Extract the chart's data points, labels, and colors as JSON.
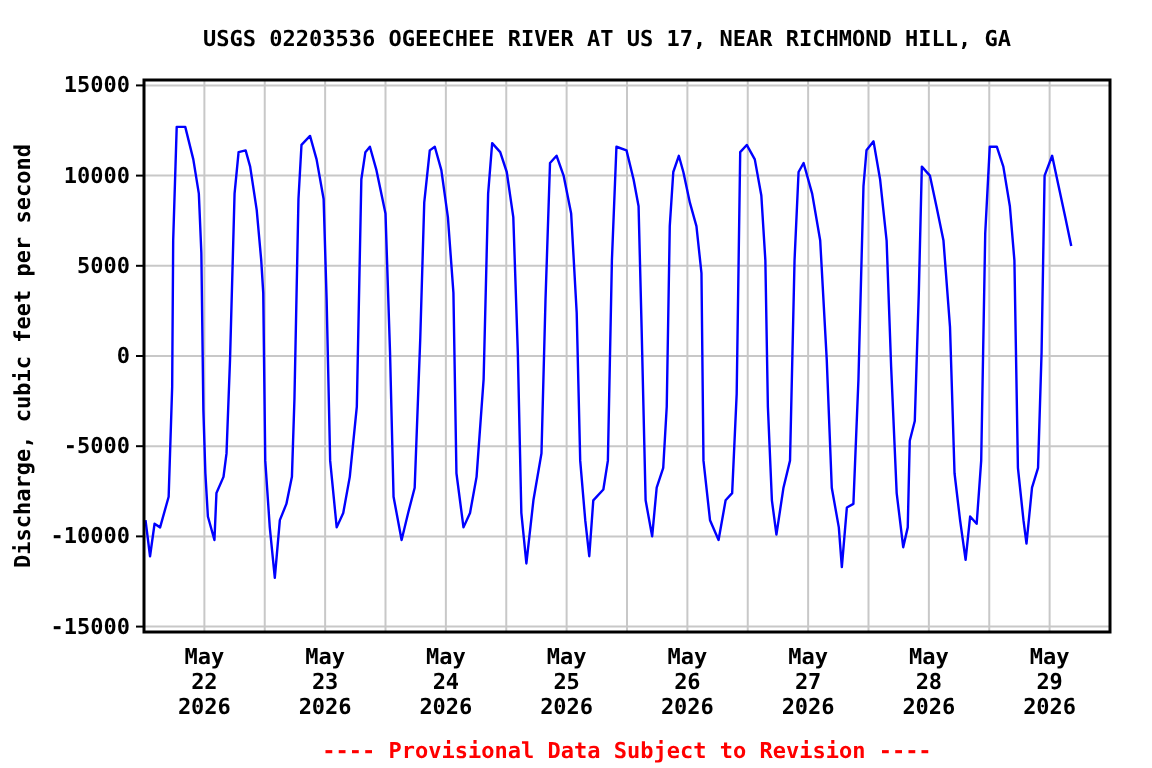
{
  "chart_data": {
    "type": "line",
    "title": "USGS 02203536 OGEECHEE RIVER AT US 17, NEAR RICHMOND HILL, GA",
    "ylabel": "Discharge, cubic feet per second",
    "annotations": [
      "---- Provisional Data Subject to Revision ----"
    ],
    "xlim": [
      "2026-05-22",
      "2026-05-30"
    ],
    "ylim": [
      -15300,
      15300
    ],
    "xticks": [
      {
        "value": "2026-05-22T12:00",
        "label": "May\n22\n2026"
      },
      {
        "value": "2026-05-23",
        "label": null
      },
      {
        "value": "2026-05-23T12:00",
        "label": "May\n23\n2026"
      },
      {
        "value": "2026-05-24",
        "label": null
      },
      {
        "value": "2026-05-24T12:00",
        "label": "May\n24\n2026"
      },
      {
        "value": "2026-05-25",
        "label": null
      },
      {
        "value": "2026-05-25T12:00",
        "label": "May\n25\n2026"
      },
      {
        "value": "2026-05-26",
        "label": null
      },
      {
        "value": "2026-05-26T12:00",
        "label": "May\n26\n2026"
      },
      {
        "value": "2026-05-27",
        "label": null
      },
      {
        "value": "2026-05-27T12:00",
        "label": "May\n27\n2026"
      },
      {
        "value": "2026-05-28",
        "label": null
      },
      {
        "value": "2026-05-28T12:00",
        "label": "May\n28\n2026"
      },
      {
        "value": "2026-05-29",
        "label": null
      },
      {
        "value": "2026-05-29T12:00",
        "label": "May\n29\n2026"
      }
    ],
    "yticks": [
      -15000,
      -10000,
      -5000,
      0,
      5000,
      10000,
      15000
    ],
    "grid": true,
    "line_style": "solid",
    "marker": "none",
    "series": [
      {
        "color": "#0000ff",
        "x": [
          "2026-05-22T00:18",
          "2026-05-22T01:12",
          "2026-05-22T02:06",
          "2026-05-22T03:12",
          "2026-05-22T04:54",
          "2026-05-22T05:36",
          "2026-05-22T05:48",
          "2026-05-22T06:30",
          "2026-05-22T08:12",
          "2026-05-22T09:48",
          "2026-05-22T10:54",
          "2026-05-22T11:24",
          "2026-05-22T11:48",
          "2026-05-22T12:12",
          "2026-05-22T12:42",
          "2026-05-22T14:00",
          "2026-05-22T14:24",
          "2026-05-22T15:48",
          "2026-05-22T16:24",
          "2026-05-22T17:06",
          "2026-05-22T18:00",
          "2026-05-22T18:48",
          "2026-05-22T20:12",
          "2026-05-22T21:06",
          "2026-05-22T22:24",
          "2026-05-22T23:18",
          "2026-05-22T23:42",
          "2026-05-23T00:06",
          "2026-05-23T01:00",
          "2026-05-23T02:00",
          "2026-05-23T03:00",
          "2026-05-23T04:18",
          "2026-05-23T05:24",
          "2026-05-23T05:54",
          "2026-05-23T06:42",
          "2026-05-23T07:18",
          "2026-05-23T09:00",
          "2026-05-23T10:18",
          "2026-05-23T11:42",
          "2026-05-23T12:18",
          "2026-05-23T13:00",
          "2026-05-23T14:18",
          "2026-05-23T15:36",
          "2026-05-23T16:54",
          "2026-05-23T18:18",
          "2026-05-23T19:12",
          "2026-05-23T20:00",
          "2026-05-23T20:54",
          "2026-05-23T22:12",
          "2026-05-24T00:00",
          "2026-05-24T00:54",
          "2026-05-24T01:36",
          "2026-05-24T03:12",
          "2026-05-24T04:30",
          "2026-05-24T05:48",
          "2026-05-24T06:54",
          "2026-05-24T07:42",
          "2026-05-24T08:48",
          "2026-05-24T09:48",
          "2026-05-24T11:06",
          "2026-05-24T12:24",
          "2026-05-24T13:30",
          "2026-05-24T14:06",
          "2026-05-24T15:30",
          "2026-05-24T16:48",
          "2026-05-24T18:06",
          "2026-05-24T19:30",
          "2026-05-24T20:24",
          "2026-05-24T21:12",
          "2026-05-24T22:48",
          "2026-05-25T00:06",
          "2026-05-25T01:24",
          "2026-05-25T02:18",
          "2026-05-25T03:00",
          "2026-05-25T04:00",
          "2026-05-25T05:24",
          "2026-05-25T07:00",
          "2026-05-25T07:48",
          "2026-05-25T08:42",
          "2026-05-25T10:00",
          "2026-05-25T11:24",
          "2026-05-25T12:54",
          "2026-05-25T14:00",
          "2026-05-25T14:42",
          "2026-05-25T15:42",
          "2026-05-25T16:30",
          "2026-05-25T17:18",
          "2026-05-25T19:18",
          "2026-05-25T20:12",
          "2026-05-25T21:00",
          "2026-05-25T21:54",
          "2026-05-25T23:54",
          "2026-05-26T01:18",
          "2026-05-26T02:18",
          "2026-05-26T02:54",
          "2026-05-26T03:42",
          "2026-05-26T05:00",
          "2026-05-26T05:54",
          "2026-05-26T07:12",
          "2026-05-26T07:54",
          "2026-05-26T08:30",
          "2026-05-26T09:12",
          "2026-05-26T10:18",
          "2026-05-26T11:12",
          "2026-05-26T12:30",
          "2026-05-26T13:48",
          "2026-05-26T14:48",
          "2026-05-26T15:12",
          "2026-05-26T16:30",
          "2026-05-26T18:12",
          "2026-05-26T19:36",
          "2026-05-26T20:54",
          "2026-05-26T21:48",
          "2026-05-26T22:30",
          "2026-05-26T23:48",
          "2026-05-27T01:24",
          "2026-05-27T02:42",
          "2026-05-27T03:30",
          "2026-05-27T04:00",
          "2026-05-27T04:48",
          "2026-05-27T05:42",
          "2026-05-27T07:06",
          "2026-05-27T08:24",
          "2026-05-27T09:18",
          "2026-05-27T10:06",
          "2026-05-27T11:06",
          "2026-05-27T12:48",
          "2026-05-27T14:24",
          "2026-05-27T15:42",
          "2026-05-27T16:42",
          "2026-05-27T18:06",
          "2026-05-27T18:42",
          "2026-05-27T19:42",
          "2026-05-27T21:00",
          "2026-05-27T22:00",
          "2026-05-27T23:00",
          "2026-05-27T23:36",
          "2026-05-28T01:00",
          "2026-05-28T02:18",
          "2026-05-28T03:36",
          "2026-05-28T04:30",
          "2026-05-28T05:36",
          "2026-05-28T06:54",
          "2026-05-28T07:48",
          "2026-05-28T08:12",
          "2026-05-28T09:12",
          "2026-05-28T10:00",
          "2026-05-28T10:36",
          "2026-05-28T12:12",
          "2026-05-28T13:30",
          "2026-05-28T14:54",
          "2026-05-28T16:12",
          "2026-05-28T17:06",
          "2026-05-28T18:12",
          "2026-05-28T19:18",
          "2026-05-28T20:12",
          "2026-05-28T21:30",
          "2026-05-28T22:24",
          "2026-05-28T23:12",
          "2026-05-29T00:06",
          "2026-05-29T01:30",
          "2026-05-29T02:48",
          "2026-05-29T04:06",
          "2026-05-29T05:00",
          "2026-05-29T05:42",
          "2026-05-29T06:48",
          "2026-05-29T07:24",
          "2026-05-29T08:30",
          "2026-05-29T09:42",
          "2026-05-29T10:24",
          "2026-05-29T11:00",
          "2026-05-29T12:30",
          "2026-05-29T13:48",
          "2026-05-29T15:06",
          "2026-05-29T16:18"
        ],
        "values": [
          -9100,
          -11100,
          -9300,
          -9500,
          -7800,
          -1700,
          6400,
          12700,
          12700,
          10900,
          9000,
          5700,
          -3000,
          -6500,
          -8900,
          -10200,
          -7600,
          -6700,
          -5400,
          -200,
          9000,
          11300,
          11400,
          10500,
          8100,
          5300,
          3500,
          -5800,
          -9500,
          -12300,
          -9100,
          -8200,
          -6700,
          -2400,
          8700,
          11700,
          12200,
          10900,
          8700,
          3100,
          -5800,
          -9500,
          -8700,
          -6700,
          -2800,
          9800,
          11300,
          11600,
          10300,
          7900,
          200,
          -7800,
          -10200,
          -8700,
          -7300,
          900,
          8500,
          11400,
          11600,
          10300,
          7700,
          3500,
          -6500,
          -9500,
          -8700,
          -6700,
          -1300,
          9000,
          11800,
          11300,
          10200,
          7700,
          200,
          -8700,
          -11500,
          -8000,
          -5400,
          3100,
          10700,
          11100,
          10000,
          7900,
          2400,
          -5800,
          -9100,
          -11100,
          -8000,
          -7400,
          -5800,
          5300,
          11600,
          11400,
          9800,
          8300,
          1600,
          -8000,
          -10000,
          -7300,
          -6200,
          -2800,
          7200,
          10200,
          11100,
          10200,
          8500,
          7200,
          4600,
          -5800,
          -9100,
          -10200,
          -8000,
          -7600,
          -2100,
          11300,
          11700,
          10900,
          8900,
          5300,
          -2800,
          -8000,
          -9900,
          -7300,
          -5800,
          5300,
          10200,
          10700,
          9000,
          6400,
          -200,
          -7300,
          -9500,
          -11700,
          -8400,
          -8200,
          -1300,
          9400,
          11400,
          11900,
          9800,
          6400,
          -600,
          -7600,
          -10600,
          -9500,
          -4700,
          -3600,
          3500,
          10500,
          10000,
          8300,
          6400,
          1600,
          -6500,
          -9100,
          -11300,
          -8900,
          -9300,
          -5800,
          6800,
          11600,
          11600,
          10500,
          8300,
          5300,
          -6200,
          -9100,
          -10400,
          -7300,
          -6200,
          200,
          10000,
          11100,
          9400,
          7700,
          6100
        ]
      }
    ]
  }
}
